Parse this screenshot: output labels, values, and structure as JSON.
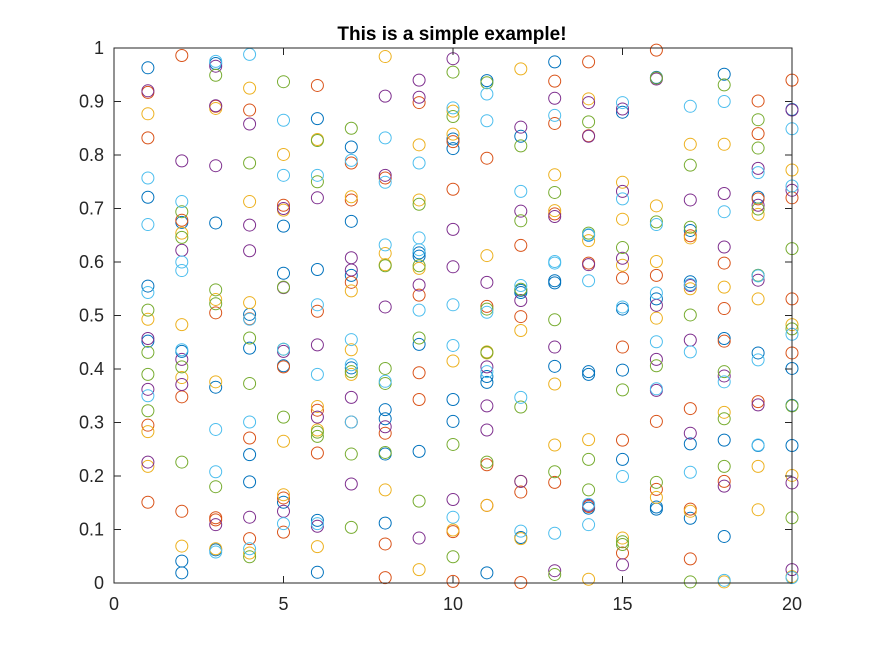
{
  "chart_data": {
    "type": "scatter",
    "title": "This is a simple example!",
    "xlabel": "",
    "ylabel": "",
    "xlim": [
      0,
      20
    ],
    "ylim": [
      0,
      1
    ],
    "x_ticks": [
      0,
      5,
      10,
      15,
      20
    ],
    "y_ticks": [
      0,
      0.1,
      0.2,
      0.3,
      0.4,
      0.5,
      0.6,
      0.7,
      0.8,
      0.9,
      1
    ],
    "x_tick_labels": [
      "0",
      "5",
      "10",
      "15",
      "20"
    ],
    "y_tick_labels": [
      "0",
      "0.1",
      "0.2",
      "0.3",
      "0.4",
      "0.5",
      "0.6",
      "0.7",
      "0.8",
      "0.9",
      "1"
    ],
    "grid": false,
    "legend": "none",
    "marker": "open-circle",
    "x": [
      1,
      2,
      3,
      4,
      5,
      6,
      7,
      8,
      9,
      10,
      11,
      12,
      13,
      14,
      15,
      16,
      17,
      18,
      19,
      20
    ],
    "series": [
      {
        "color": "#0072BD",
        "values": [
          [
            0.963,
            0.721,
            0.555,
            0.452
          ],
          [
            0.433,
            0.041,
            0.019,
            0.674
          ],
          [
            0.971,
            0.673,
            0.366,
            0.062
          ],
          [
            0.502,
            0.439,
            0.24,
            0.189
          ],
          [
            0.667,
            0.579,
            0.406,
            0.151
          ],
          [
            0.868,
            0.586,
            0.117,
            0.02
          ],
          [
            0.815,
            0.676,
            0.575,
            0.402
          ],
          [
            0.324,
            0.307,
            0.241,
            0.112
          ],
          [
            0.617,
            0.446,
            0.246,
            0.611
          ],
          [
            0.812,
            0.343,
            0.302,
            0.83
          ],
          [
            0.386,
            0.375,
            0.019,
            0.939
          ],
          [
            0.547,
            0.085,
            0.835,
            0.543
          ],
          [
            0.974,
            0.561,
            0.405,
            0.565
          ],
          [
            0.395,
            0.39,
            0.14,
            0.65
          ],
          [
            0.398,
            0.231,
            0.88,
            0.512
          ],
          [
            0.531,
            0.142,
            0.138,
            0.945
          ],
          [
            0.659,
            0.26,
            0.121,
            0.563
          ],
          [
            0.951,
            0.267,
            0.087,
            0.457
          ],
          [
            0.721,
            0.43,
            0.257,
            0.575
          ],
          [
            0.885,
            0.401,
            0.332,
            0.257
          ]
        ]
      },
      {
        "color": "#D95319",
        "values": [
          [
            0.917,
            0.832,
            0.295,
            0.151
          ],
          [
            0.986,
            0.678,
            0.348,
            0.134
          ],
          [
            0.891,
            0.505,
            0.122,
            0.118
          ],
          [
            0.884,
            0.494,
            0.271,
            0.083
          ],
          [
            0.706,
            0.404,
            0.159,
            0.095
          ],
          [
            0.93,
            0.508,
            0.323,
            0.243
          ],
          [
            0.785,
            0.716,
            0.301,
            0.562
          ],
          [
            0.757,
            0.28,
            0.073,
            0.01
          ],
          [
            0.898,
            0.538,
            0.343,
            0.393
          ],
          [
            0.825,
            0.736,
            0.096,
            0.003
          ],
          [
            0.794,
            0.517,
            0.145,
            0.221
          ],
          [
            0.631,
            0.498,
            0.17,
            0.001
          ],
          [
            0.938,
            0.859,
            0.69,
            0.188
          ],
          [
            0.974,
            0.836,
            0.598,
            0.143
          ],
          [
            0.57,
            0.441,
            0.267,
            0.056
          ],
          [
            0.996,
            0.575,
            0.302,
            0.175
          ],
          [
            0.649,
            0.326,
            0.138,
            0.045
          ],
          [
            0.598,
            0.513,
            0.452,
            0.19
          ],
          [
            0.901,
            0.84,
            0.718,
            0.339
          ],
          [
            0.94,
            0.72,
            0.43,
            0.531
          ]
        ]
      },
      {
        "color": "#EDB120",
        "values": [
          [
            0.877,
            0.493,
            0.283,
            0.218
          ],
          [
            0.483,
            0.384,
            0.069,
            0.654
          ],
          [
            0.887,
            0.376,
            0.064,
            0.53
          ],
          [
            0.925,
            0.524,
            0.056,
            0.713
          ],
          [
            0.801,
            0.697,
            0.265,
            0.165
          ],
          [
            0.829,
            0.286,
            0.068,
            0.33
          ],
          [
            0.546,
            0.436,
            0.39,
            0.722
          ],
          [
            0.984,
            0.616,
            0.174,
            0.595
          ],
          [
            0.819,
            0.716,
            0.025,
            0.588
          ],
          [
            0.839,
            0.882,
            0.099,
            0.415
          ],
          [
            0.432,
            0.43,
            0.145,
            0.612
          ],
          [
            0.961,
            0.472,
            0.19,
            0.083
          ],
          [
            0.763,
            0.696,
            0.258,
            0.372
          ],
          [
            0.268,
            0.007,
            0.64,
            0.905
          ],
          [
            0.749,
            0.68,
            0.594,
            0.084
          ],
          [
            0.705,
            0.495,
            0.16,
            0.601
          ],
          [
            0.645,
            0.55,
            0.134,
            0.82
          ],
          [
            0.82,
            0.553,
            0.319,
            0.002
          ],
          [
            0.531,
            0.218,
            0.137,
            0.689
          ],
          [
            0.772,
            0.483,
            0.201,
            0.012
          ]
        ]
      },
      {
        "color": "#7E2F8E",
        "values": [
          [
            0.457,
            0.362,
            0.226,
            0.92
          ],
          [
            0.789,
            0.371,
            0.418,
            0.622
          ],
          [
            0.78,
            0.892,
            0.966,
            0.109
          ],
          [
            0.858,
            0.669,
            0.621,
            0.123
          ],
          [
            0.134,
            0.7,
            0.433,
            0.552
          ],
          [
            0.72,
            0.31,
            0.106,
            0.445
          ],
          [
            0.608,
            0.585,
            0.347,
            0.185
          ],
          [
            0.762,
            0.516,
            0.292,
            0.91
          ],
          [
            0.94,
            0.908,
            0.557,
            0.084
          ],
          [
            0.98,
            0.591,
            0.156,
            0.661
          ],
          [
            0.562,
            0.331,
            0.286,
            0.404
          ],
          [
            0.852,
            0.695,
            0.19,
            0.528
          ],
          [
            0.906,
            0.441,
            0.685,
            0.023
          ],
          [
            0.898,
            0.595,
            0.835,
            0.145
          ],
          [
            0.886,
            0.732,
            0.607,
            0.034
          ],
          [
            0.942,
            0.519,
            0.36,
            0.418
          ],
          [
            0.716,
            0.556,
            0.454,
            0.28
          ],
          [
            0.728,
            0.387,
            0.181,
            0.628
          ],
          [
            0.775,
            0.706,
            0.333,
            0.566
          ],
          [
            0.884,
            0.734,
            0.187,
            0.025
          ]
        ]
      },
      {
        "color": "#77AC30",
        "values": [
          [
            0.431,
            0.322,
            0.51,
            0.39
          ],
          [
            0.694,
            0.646,
            0.404,
            0.226
          ],
          [
            0.949,
            0.548,
            0.522,
            0.18
          ],
          [
            0.785,
            0.373,
            0.049,
            0.458
          ],
          [
            0.937,
            0.553,
            0.437,
            0.31
          ],
          [
            0.827,
            0.274,
            0.282,
            0.75
          ],
          [
            0.85,
            0.395,
            0.241,
            0.104
          ],
          [
            0.373,
            0.244,
            0.593,
            0.401
          ],
          [
            0.458,
            0.593,
            0.153,
            0.708
          ],
          [
            0.955,
            0.872,
            0.049,
            0.259
          ],
          [
            0.935,
            0.226,
            0.431,
            0.512
          ],
          [
            0.817,
            0.549,
            0.677,
            0.329
          ],
          [
            0.73,
            0.208,
            0.016,
            0.492
          ],
          [
            0.862,
            0.654,
            0.174,
            0.231
          ],
          [
            0.361,
            0.077,
            0.072,
            0.627
          ],
          [
            0.675,
            0.406,
            0.188,
            0.944
          ],
          [
            0.665,
            0.501,
            0.002,
            0.781
          ],
          [
            0.931,
            0.307,
            0.218,
            0.395
          ],
          [
            0.813,
            0.699,
            0.575,
            0.866
          ],
          [
            0.625,
            0.475,
            0.122,
            0.331
          ]
        ]
      },
      {
        "color": "#4DBEEE",
        "values": [
          [
            0.757,
            0.67,
            0.543,
            0.35
          ],
          [
            0.6,
            0.436,
            0.584,
            0.713
          ],
          [
            0.975,
            0.287,
            0.058,
            0.208
          ],
          [
            0.988,
            0.493,
            0.064,
            0.301
          ],
          [
            0.865,
            0.762,
            0.437,
            0.111
          ],
          [
            0.762,
            0.39,
            0.111,
            0.52
          ],
          [
            0.455,
            0.408,
            0.301,
            0.79
          ],
          [
            0.832,
            0.749,
            0.377,
            0.632
          ],
          [
            0.785,
            0.645,
            0.623,
            0.51
          ],
          [
            0.888,
            0.52,
            0.123,
            0.444
          ],
          [
            0.914,
            0.864,
            0.506,
            0.395
          ],
          [
            0.556,
            0.347,
            0.097,
            0.732
          ],
          [
            0.598,
            0.874,
            0.093,
            0.601
          ],
          [
            0.565,
            0.651,
            0.147,
            0.109
          ],
          [
            0.898,
            0.516,
            0.199,
            0.718
          ],
          [
            0.67,
            0.451,
            0.363,
            0.542
          ],
          [
            0.432,
            0.207,
            0.558,
            0.891
          ],
          [
            0.9,
            0.694,
            0.005,
            0.376
          ],
          [
            0.767,
            0.574,
            0.258,
            0.417
          ],
          [
            0.849,
            0.01,
            0.465,
            0.742
          ]
        ]
      }
    ]
  }
}
